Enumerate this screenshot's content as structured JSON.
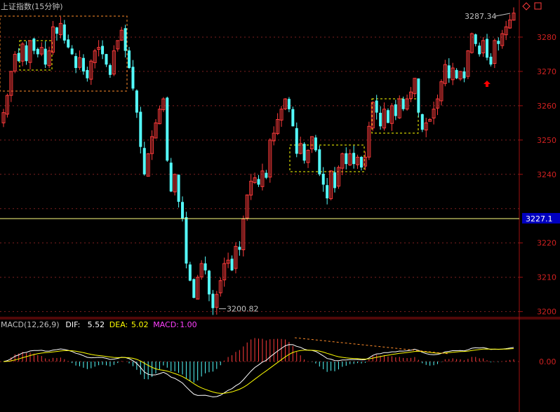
{
  "title": "上证指数(15分钟)",
  "colors": {
    "background": "#000000",
    "up": "#ff3b3b",
    "down": "#54fcfc",
    "border": "#a01010",
    "grid": "#802020",
    "box": "#ffff00",
    "box_orange": "#ff8c2a",
    "crosshair": "#ffff80",
    "axis_text": "#d02020",
    "price_tag_bg": "#0000c0",
    "dif": "#ffffff",
    "dea": "#ffff00",
    "macd": "#ff40ff",
    "arrow": "#ff0000"
  },
  "icons": [
    "diamond-icon",
    "square-icon",
    "up-arrow-icon"
  ],
  "price_axis": {
    "ticks": [
      "3280",
      "3270",
      "3260",
      "3250",
      "3240",
      "3220",
      "3210",
      "3200"
    ],
    "tick_values": [
      3280,
      3270,
      3260,
      3250,
      3240,
      3220,
      3210,
      3200
    ],
    "current_price": "3227.1",
    "current_value": 3227.1
  },
  "annotations": {
    "high": "3287.34",
    "high_value": 3287.34,
    "low": "3200.82",
    "low_value": 3200.82
  },
  "macd_axis": {
    "zero_label": "0.00"
  },
  "macd_legend": {
    "name": "MACD(12,26,9)",
    "dif_label": "DIF:",
    "dif_value": "5.52",
    "dea_label": "DEA:",
    "dea_value": "5.02",
    "macd_label": "MACD:",
    "macd_value": "1.00"
  },
  "chart_data": {
    "type": "candlestick",
    "title": "上证指数(15分钟)",
    "ylim": [
      3198,
      3290
    ],
    "closes": [
      3258,
      3263,
      3270,
      3275,
      3273,
      3278,
      3273,
      3279,
      3276,
      3275,
      3277,
      3272,
      3276,
      3283,
      3281,
      3284,
      3279,
      3277,
      3275,
      3271,
      3274,
      3270,
      3268,
      3273,
      3276,
      3277,
      3275,
      3272,
      3269,
      3276,
      3279,
      3282,
      3276,
      3271,
      3265,
      3258,
      3248,
      3240,
      3246,
      3251,
      3255,
      3259,
      3262,
      3244,
      3235,
      3240,
      3232,
      3227,
      3214,
      3209,
      3204,
      3210,
      3214,
      3212,
      3205,
      3201,
      3205,
      3209,
      3214,
      3215,
      3212,
      3219,
      3218,
      3227,
      3234,
      3238,
      3239,
      3237,
      3241,
      3239,
      3250,
      3252,
      3256,
      3259,
      3262,
      3259,
      3254,
      3246,
      3249,
      3244,
      3247,
      3251,
      3247,
      3240,
      3237,
      3233,
      3241,
      3236,
      3242,
      3246,
      3243,
      3246,
      3243,
      3245,
      3242,
      3245,
      3254,
      3261,
      3258,
      3254,
      3259,
      3255,
      3260,
      3257,
      3262,
      3259,
      3262,
      3264,
      3268,
      3258,
      3253,
      3255,
      3256,
      3259,
      3262,
      3267,
      3272,
      3268,
      3271,
      3268,
      3270,
      3268,
      3276,
      3281,
      3278,
      3275,
      3279,
      3274,
      3272,
      3279,
      3278,
      3281,
      3283,
      3285,
      3287
    ],
    "macd": {
      "dif": 5.52,
      "dea": 5.02,
      "macd": 1.0,
      "params": [
        12,
        26,
        9
      ],
      "ylim": [
        -15,
        10
      ]
    }
  }
}
